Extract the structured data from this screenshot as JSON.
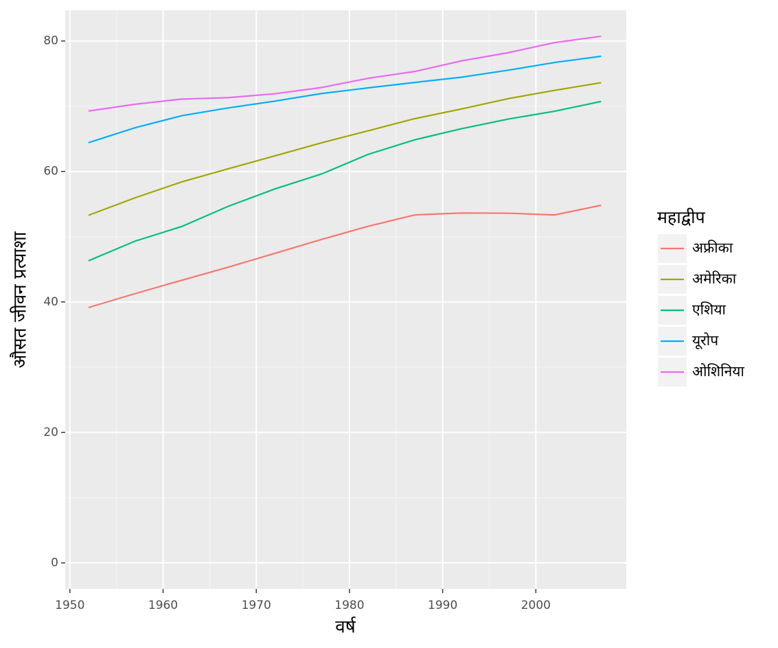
{
  "chart_data": {
    "type": "line",
    "x_label": "वर्ष",
    "y_label": "औसत जीवन प्रत्याशा",
    "legend_title": "महाद्वीप",
    "x": [
      1952,
      1957,
      1962,
      1967,
      1972,
      1977,
      1982,
      1987,
      1992,
      1997,
      2002,
      2007
    ],
    "series": [
      {
        "name": "अफ्रीका",
        "color": "#f8766d",
        "values": [
          39.14,
          41.27,
          43.32,
          45.33,
          47.45,
          49.58,
          51.59,
          53.34,
          53.63,
          53.6,
          53.33,
          54.81
        ]
      },
      {
        "name": "अमेरिका",
        "color": "#a3a500",
        "values": [
          53.28,
          55.96,
          58.4,
          60.41,
          62.39,
          64.39,
          66.23,
          68.09,
          69.57,
          71.15,
          72.42,
          73.61
        ]
      },
      {
        "name": "एशिया",
        "color": "#00bf7d",
        "values": [
          46.31,
          49.32,
          51.56,
          54.66,
          57.32,
          59.61,
          62.62,
          64.85,
          66.54,
          68.02,
          69.23,
          70.73
        ]
      },
      {
        "name": "यूरोप",
        "color": "#00b0f6",
        "values": [
          64.41,
          66.7,
          68.54,
          69.74,
          70.78,
          71.94,
          72.81,
          73.64,
          74.44,
          75.51,
          76.7,
          77.65
        ]
      },
      {
        "name": "ओशिनिया",
        "color": "#e76bf3",
        "values": [
          69.26,
          70.3,
          71.09,
          71.31,
          71.91,
          72.86,
          74.28,
          75.32,
          76.94,
          78.19,
          79.74,
          80.72
        ]
      }
    ],
    "xlim": [
      1949.5,
      2009.7
    ],
    "ylim": [
      -4,
      84.7
    ],
    "xticks": [
      1950,
      1960,
      1970,
      1980,
      1990,
      2000
    ],
    "yticks": [
      0,
      20,
      40,
      60,
      80
    ],
    "grid": true,
    "legend": "right"
  }
}
